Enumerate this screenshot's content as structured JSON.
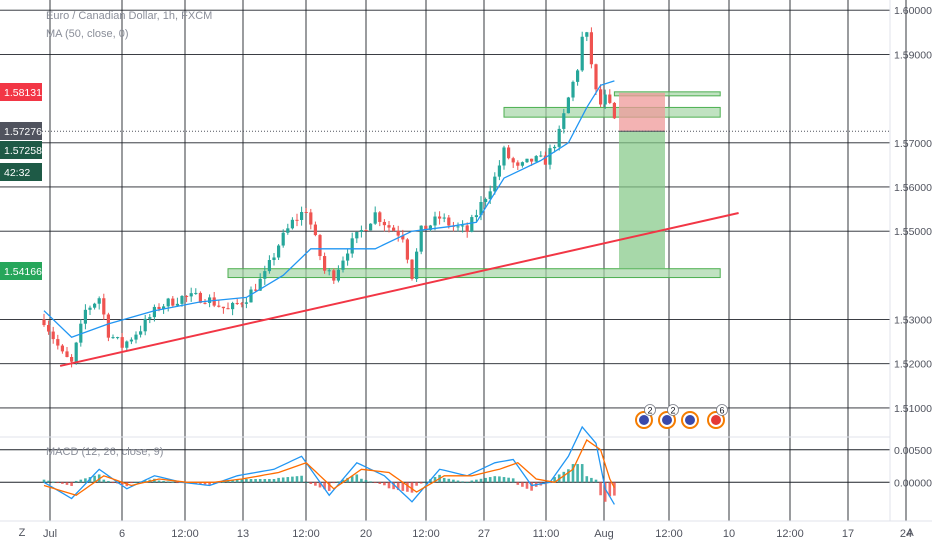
{
  "header": {
    "symbol_title": "Euro / Canadian Dollar, 1h, FXCM",
    "ma_label": "MA (50, close, 0)",
    "macd_label": "MACD (12, 26, close, 9)"
  },
  "price_axis": {
    "ticks": [
      "1.60000",
      "1.59000",
      "1.57000",
      "1.56000",
      "1.55000",
      "1.53000",
      "1.52000",
      "1.51000"
    ],
    "badges": [
      {
        "text": "1.58131",
        "color": "#f23645"
      },
      {
        "text": "1.57276",
        "color": "#50535e"
      },
      {
        "text": "1.57258",
        "color": "#1e5a46"
      },
      {
        "text": "42:32",
        "color": "#1e5a46"
      },
      {
        "text": "1.54166",
        "color": "#26a65b"
      }
    ]
  },
  "macd_axis": {
    "ticks": [
      "0.00500",
      "0.00000"
    ]
  },
  "time_axis": {
    "ticks": [
      "Jul",
      "6",
      "12:00",
      "13",
      "12:00",
      "20",
      "12:00",
      "27",
      "11:00",
      "Aug",
      "12:00",
      "10",
      "12:00",
      "17",
      "24"
    ],
    "corner_left": "Z",
    "corner_right": "A"
  },
  "events": [
    {
      "count": "2",
      "icon": "flag-eu-icon"
    },
    {
      "count": "2",
      "icon": "flag-eu-icon"
    },
    {
      "count": "",
      "icon": "flag-eu-icon"
    },
    {
      "count": "6",
      "icon": "flag-ca-icon"
    }
  ],
  "colors": {
    "up": "#26a69a",
    "down": "#ef5350",
    "ma": "#2196f3",
    "trendline": "#f23645",
    "zone_fill": "#a5d6a7",
    "zone_stroke": "#4caf50",
    "stop_fill": "#ef9a9a",
    "target_fill": "#81c784",
    "macd_line": "#2196f3",
    "signal_line": "#ff6d00"
  },
  "chart_data": {
    "type": "candlestick",
    "symbol": "Euro / Canadian Dollar",
    "interval": "1h",
    "ylim": [
      1.505,
      1.6005
    ],
    "price_path": [
      [
        0,
        1.53
      ],
      [
        4,
        1.522
      ],
      [
        6,
        1.52
      ],
      [
        9,
        1.532
      ],
      [
        12,
        1.535
      ],
      [
        14,
        1.527
      ],
      [
        17,
        1.524
      ],
      [
        21,
        1.528
      ],
      [
        25,
        1.533
      ],
      [
        30,
        1.535
      ],
      [
        35,
        1.535
      ],
      [
        40,
        1.532
      ],
      [
        44,
        1.535
      ],
      [
        48,
        1.54
      ],
      [
        51,
        1.547
      ],
      [
        54,
        1.552
      ],
      [
        57,
        1.555
      ],
      [
        59,
        1.548
      ],
      [
        61,
        1.541
      ],
      [
        63,
        1.54
      ],
      [
        66,
        1.546
      ],
      [
        69,
        1.55
      ],
      [
        72,
        1.554
      ],
      [
        75,
        1.551
      ],
      [
        78,
        1.549
      ],
      [
        80,
        1.54
      ],
      [
        82,
        1.55
      ],
      [
        86,
        1.553
      ],
      [
        89,
        1.551
      ],
      [
        92,
        1.55
      ],
      [
        95,
        1.556
      ],
      [
        98,
        1.562
      ],
      [
        100,
        1.568
      ],
      [
        103,
        1.564
      ],
      [
        106,
        1.566
      ],
      [
        109,
        1.566
      ],
      [
        112,
        1.572
      ],
      [
        114,
        1.58
      ],
      [
        116,
        1.587
      ],
      [
        117.5,
        1.597
      ],
      [
        119,
        1.588
      ],
      [
        120.5,
        1.578
      ],
      [
        122,
        1.58
      ],
      [
        123.5,
        1.577
      ],
      [
        124.5,
        1.573
      ]
    ],
    "ma50": [
      [
        0,
        1.532
      ],
      [
        6,
        1.526
      ],
      [
        14,
        1.529
      ],
      [
        24,
        1.532
      ],
      [
        34,
        1.534
      ],
      [
        44,
        1.535
      ],
      [
        52,
        1.54
      ],
      [
        58,
        1.546
      ],
      [
        64,
        1.546
      ],
      [
        72,
        1.546
      ],
      [
        80,
        1.55
      ],
      [
        88,
        1.551
      ],
      [
        94,
        1.552
      ],
      [
        100,
        1.562
      ],
      [
        108,
        1.566
      ],
      [
        114,
        1.57
      ],
      [
        118,
        1.578
      ],
      [
        121,
        1.583
      ],
      [
        124,
        1.584
      ]
    ],
    "trendline": [
      [
        3.5,
        1.5195
      ],
      [
        151,
        1.5541
      ]
    ],
    "support_zone": {
      "x": [
        40,
        147
      ],
      "y": [
        1.5395,
        1.5415
      ]
    },
    "resistance_zone": {
      "x": [
        100,
        147
      ],
      "y": [
        1.5758,
        1.578
      ]
    },
    "position": {
      "entry": 1.5726,
      "stop": 1.5813,
      "target": 1.5416,
      "x": [
        125,
        135
      ]
    },
    "macd": {
      "ylim": [
        -0.0055,
        0.0065
      ],
      "macd_path": [
        [
          0,
          0.0
        ],
        [
          6,
          -0.0025
        ],
        [
          12,
          0.002
        ],
        [
          18,
          -0.001
        ],
        [
          24,
          0.001
        ],
        [
          30,
          0.0
        ],
        [
          36,
          -0.0005
        ],
        [
          42,
          0.001
        ],
        [
          50,
          0.002
        ],
        [
          56,
          0.004
        ],
        [
          62,
          -0.002
        ],
        [
          68,
          0.003
        ],
        [
          74,
          0.001
        ],
        [
          80,
          -0.003
        ],
        [
          86,
          0.002
        ],
        [
          92,
          0.001
        ],
        [
          98,
          0.003
        ],
        [
          102,
          0.0035
        ],
        [
          106,
          -0.0005
        ],
        [
          110,
          0.0
        ],
        [
          114,
          0.004
        ],
        [
          117,
          0.0085
        ],
        [
          120,
          0.006
        ],
        [
          122,
          -0.001
        ],
        [
          124.5,
          -0.004
        ]
      ],
      "signal_path": [
        [
          0,
          -0.0005
        ],
        [
          7,
          -0.002
        ],
        [
          13,
          0.001
        ],
        [
          19,
          -0.0005
        ],
        [
          25,
          0.0005
        ],
        [
          31,
          0.0
        ],
        [
          37,
          0.0
        ],
        [
          43,
          0.0005
        ],
        [
          51,
          0.0015
        ],
        [
          57,
          0.003
        ],
        [
          63,
          -0.001
        ],
        [
          69,
          0.002
        ],
        [
          75,
          0.0015
        ],
        [
          81,
          -0.0015
        ],
        [
          87,
          0.001
        ],
        [
          93,
          0.001
        ],
        [
          99,
          0.002
        ],
        [
          103,
          0.003
        ],
        [
          107,
          0.0005
        ],
        [
          111,
          0.0
        ],
        [
          115,
          0.002
        ],
        [
          118,
          0.0065
        ],
        [
          121,
          0.005
        ],
        [
          123,
          0.0005
        ],
        [
          124.5,
          -0.0015
        ]
      ]
    }
  }
}
